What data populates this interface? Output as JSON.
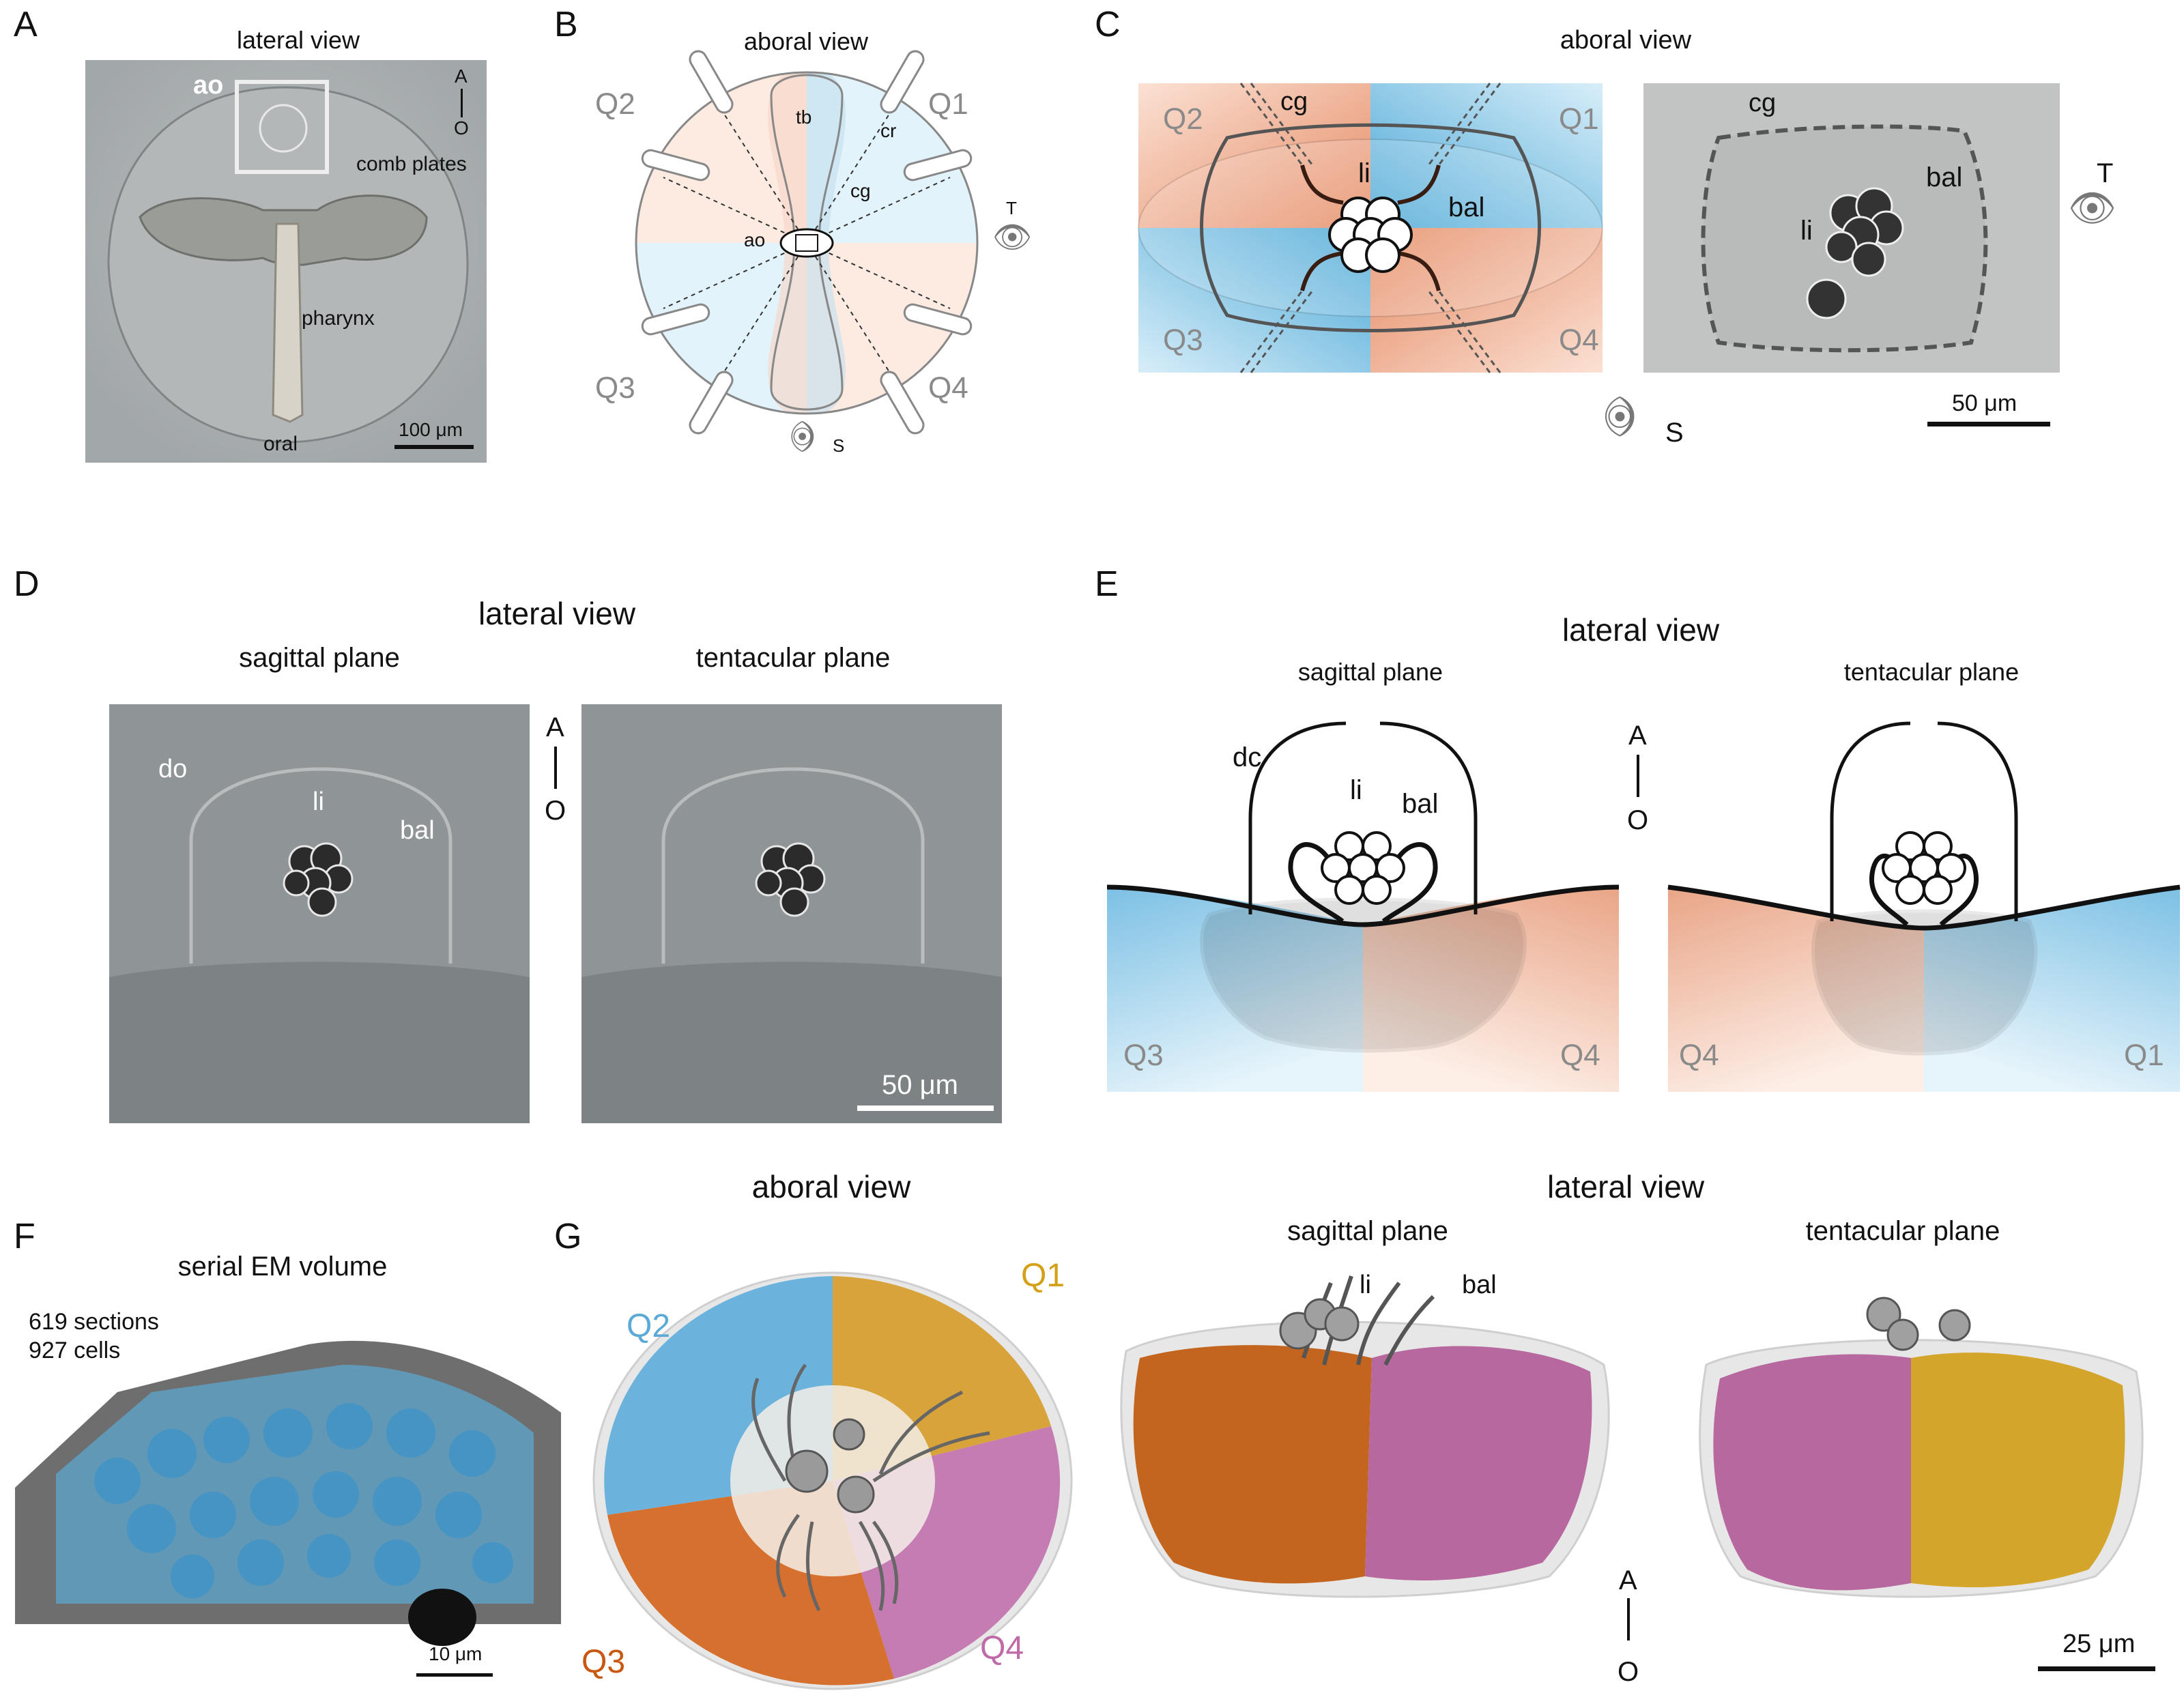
{
  "panels": {
    "A": {
      "letter": "A",
      "title": "lateral view",
      "ao": "ao",
      "axis_a": "A",
      "axis_o": "O",
      "comb_plates": "comb plates",
      "pharynx": "pharynx",
      "oral": "oral",
      "scale": "100 μm"
    },
    "B": {
      "letter": "B",
      "title": "aboral view",
      "q1": "Q1",
      "q2": "Q2",
      "q3": "Q3",
      "q4": "Q4",
      "tb": "tb",
      "cr": "cr",
      "cg": "cg",
      "ao": "ao",
      "t": "T",
      "s": "S"
    },
    "C": {
      "letter": "C",
      "title": "aboral view",
      "q1": "Q1",
      "q2": "Q2",
      "q3": "Q3",
      "q4": "Q4",
      "cg": "cg",
      "li": "li",
      "bal": "bal",
      "cg2": "cg",
      "li2": "li",
      "bal2": "bal",
      "t": "T",
      "s": "S",
      "scale": "50 μm"
    },
    "D": {
      "letter": "D",
      "title": "lateral view",
      "sagittal": "sagittal plane",
      "tentacular": "tentacular plane",
      "do": "do",
      "li": "li",
      "bal": "bal",
      "axis_a": "A",
      "axis_o": "O",
      "scale": "50 μm"
    },
    "E": {
      "letter": "E",
      "title": "lateral view",
      "sagittal": "sagittal plane",
      "tentacular": "tentacular plane",
      "dc": "dc",
      "li": "li",
      "bal": "bal",
      "axis_a": "A",
      "axis_o": "O",
      "q3": "Q3",
      "q4": "Q4",
      "q4b": "Q4",
      "q1": "Q1"
    },
    "F": {
      "letter": "F",
      "title": "serial EM volume",
      "sections": "619 sections",
      "cells": "927 cells",
      "scale": "10 μm"
    },
    "G": {
      "letter": "G",
      "aboral_title": "aboral view",
      "lateral_title": "lateral view",
      "sagittal": "sagittal plane",
      "tentacular": "tentacular plane",
      "q1": "Q1",
      "q2": "Q2",
      "q3": "Q3",
      "q4": "Q4",
      "li": "li",
      "bal": "bal",
      "axis_a": "A",
      "axis_o": "O",
      "scale": "25 μm"
    }
  },
  "colors": {
    "q_blue": "#7cc3e6",
    "q_orange": "#f0a582",
    "gold": "#d4a017",
    "rust": "#c9570f",
    "magenta": "#c06aa8",
    "sky": "#5aa9d6"
  }
}
